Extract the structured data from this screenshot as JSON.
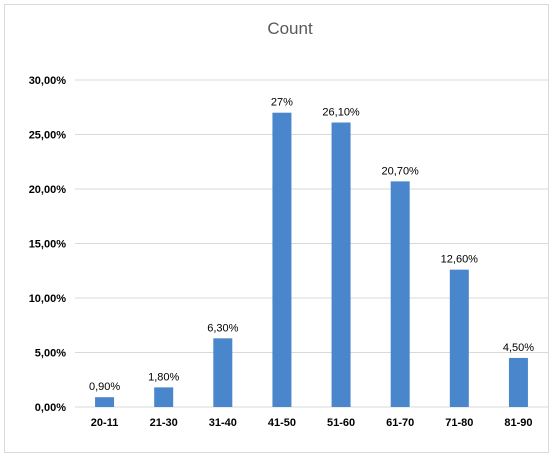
{
  "chart_data": {
    "type": "bar",
    "title": "Count",
    "xlabel": "",
    "ylabel": "",
    "categories": [
      "20-11",
      "21-30",
      "31-40",
      "41-50",
      "51-60",
      "61-70",
      "71-80",
      "81-90"
    ],
    "values": [
      0.9,
      1.8,
      6.3,
      27,
      26.1,
      20.7,
      12.6,
      4.5
    ],
    "data_labels": [
      "0,90%",
      "1,80%",
      "6,30%",
      "27%",
      "26,10%",
      "20,70%",
      "12,60%",
      "4,50%"
    ],
    "ylim": [
      0,
      30
    ],
    "yticks": [
      0,
      5,
      10,
      15,
      20,
      25,
      30
    ],
    "ytick_labels": [
      "0,00%",
      "5,00%",
      "10,00%",
      "15,00%",
      "20,00%",
      "25,00%",
      "30,00%"
    ],
    "grid": true,
    "legend": "none",
    "colors": {
      "bar": "#4a86cc",
      "grid": "#d9d9d9",
      "text": "#000000",
      "title": "#595959"
    }
  }
}
